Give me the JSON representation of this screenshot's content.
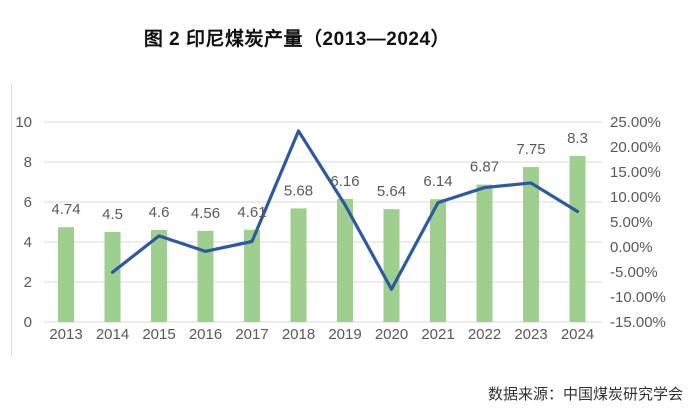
{
  "page": {
    "title": "图 2 印尼煤炭产量（2013—2024）",
    "source_note": "数据来源：中国煤炭研究学会"
  },
  "colors": {
    "bar_fill": "#9ECF8F",
    "line_stroke": "#2B5AA0",
    "gridline": "#D9D9D9",
    "axis_text": "#595959",
    "frame_line": "#DBDBDB"
  },
  "chart_data": {
    "type": "bar+line combo",
    "title": "图 2 印尼煤炭产量（2013—2024）",
    "categories": [
      "2013",
      "2014",
      "2015",
      "2016",
      "2017",
      "2018",
      "2019",
      "2020",
      "2021",
      "2022",
      "2023",
      "2024"
    ],
    "series": [
      {
        "kind": "bar",
        "axis": "left",
        "values": [
          4.74,
          4.5,
          4.6,
          4.56,
          4.61,
          5.68,
          6.16,
          5.64,
          6.14,
          6.87,
          7.75,
          8.3
        ],
        "data_labels": [
          "4.74",
          "4.5",
          "4.6",
          "4.56",
          "4.61",
          "5.68",
          "6.16",
          "5.64",
          "6.14",
          "6.87",
          "7.75",
          "8.3"
        ]
      },
      {
        "kind": "line",
        "axis": "right",
        "values": [
          null,
          -5.06,
          2.22,
          -0.87,
          1.1,
          23.21,
          8.45,
          -8.44,
          8.87,
          11.89,
          12.81,
          7.1
        ]
      }
    ],
    "left_axis": {
      "range": [
        0,
        10
      ],
      "ticks": [
        {
          "label": "10",
          "value": 10
        },
        {
          "label": "8",
          "value": 8
        },
        {
          "label": "6",
          "value": 6
        },
        {
          "label": "4",
          "value": 4
        },
        {
          "label": "2",
          "value": 2
        },
        {
          "label": "0",
          "value": 0
        }
      ]
    },
    "right_axis": {
      "range": [
        -15,
        25
      ],
      "ticks": [
        {
          "label": "25.00%",
          "value": 25
        },
        {
          "label": "20.00%",
          "value": 20
        },
        {
          "label": "15.00%",
          "value": 15
        },
        {
          "label": "10.00%",
          "value": 10
        },
        {
          "label": "5.00%",
          "value": 5
        },
        {
          "label": "0.00%",
          "value": 0
        },
        {
          "label": "-5.00%",
          "value": -5
        },
        {
          "label": "-10.00%",
          "value": -10
        },
        {
          "label": "-15.00%",
          "value": -15
        }
      ]
    },
    "grid": true,
    "legend": "none",
    "source": "数据来源：中国煤炭研究学会"
  }
}
